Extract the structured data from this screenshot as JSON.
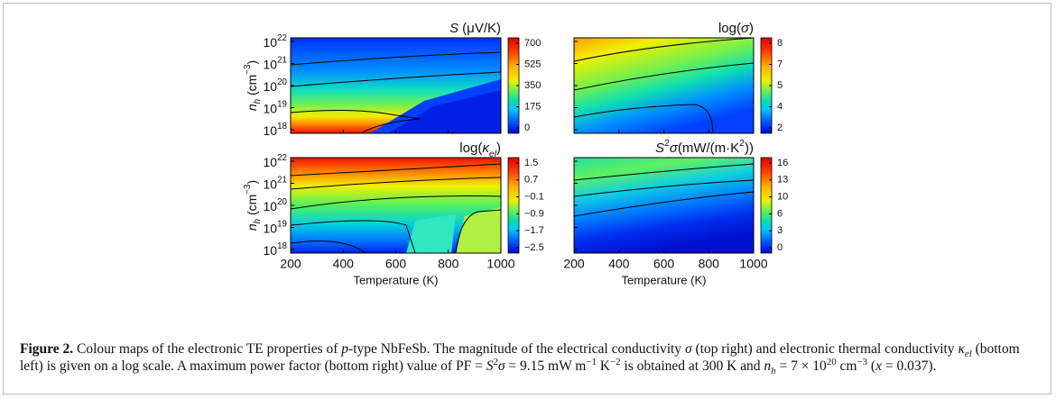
{
  "figure": {
    "panels": [
      {
        "title": [
          "S",
          " (μV/K)"
        ],
        "colorbar_ticks": [
          "700",
          "525",
          "350",
          "175",
          "0"
        ]
      },
      {
        "title": [
          "log(",
          "σ",
          ")"
        ],
        "colorbar_ticks": [
          "8",
          "7",
          "5",
          "4",
          "2"
        ]
      },
      {
        "title": [
          "log(",
          "κ",
          "el",
          ")"
        ],
        "colorbar_ticks": [
          "1.5",
          "0.7",
          "−0.1",
          "−0.9",
          "−1.7",
          "−2.5"
        ]
      },
      {
        "title": [
          "S",
          "2",
          "σ",
          "(mW/(m·K",
          "2",
          "))"
        ],
        "colorbar_ticks": [
          "16",
          "13",
          "10",
          "6",
          "3",
          "0"
        ]
      }
    ],
    "y_axis": {
      "label": [
        "n",
        "h",
        " (cm",
        "−3",
        ")"
      ],
      "ticks": [
        {
          "base": "10",
          "exponent": "22"
        },
        {
          "base": "10",
          "exponent": "21"
        },
        {
          "base": "10",
          "exponent": "20"
        },
        {
          "base": "10",
          "exponent": "19"
        },
        {
          "base": "10",
          "exponent": "18"
        }
      ]
    },
    "x_axis": {
      "label": "Temperature (K)",
      "ticks": [
        "200",
        "400",
        "600",
        "800",
        "1000"
      ]
    },
    "caption": {
      "parts": [
        "Figure 2.",
        " Colour maps of the electronic TE properties of ",
        "p",
        "-type NbFeSb. The magnitude of the electrical conductivity ",
        "σ",
        " (top right) and electronic thermal conductivity ",
        "κ",
        "el",
        " (bottom left) is given on a log scale. A maximum power factor (bottom right) value of PF = ",
        "S",
        "2",
        "σ",
        " = 9.15 mW m",
        "−1",
        " K",
        "−2",
        " is obtained at 300 K and ",
        "n",
        "h",
        " = 7 × 10",
        "20",
        " cm",
        "−3",
        " (",
        "x",
        " = 0.037)."
      ]
    }
  }
}
